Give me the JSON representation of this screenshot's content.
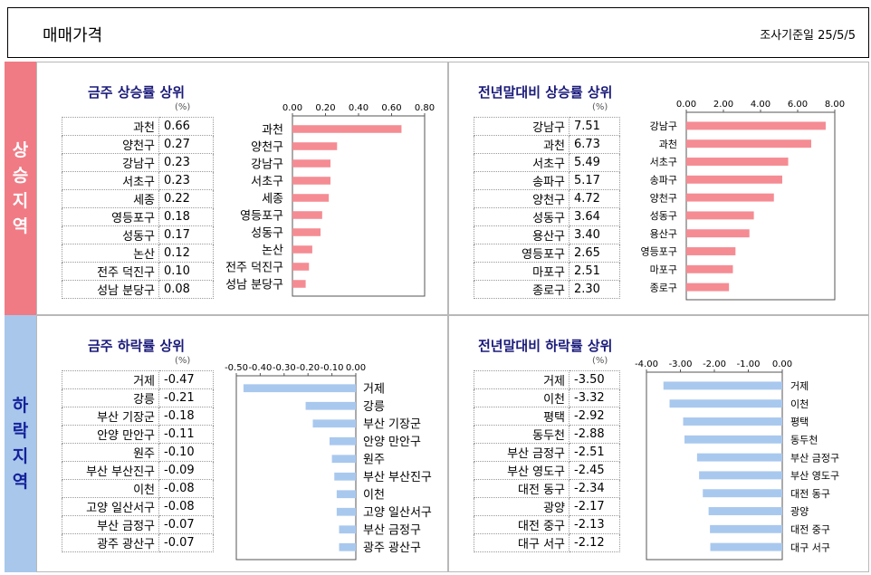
{
  "header": {
    "title": "매매가격",
    "date_label": "조사기준일 25/5/5"
  },
  "sections": {
    "rise_label": "상승지역",
    "fall_label": "하락지역"
  },
  "colors": {
    "rise_bar": "#f58c93",
    "fall_bar": "#a9c8ee",
    "rise_side": "#f07b85",
    "fall_side": "#a8c7eb"
  },
  "unit_label": "(%)",
  "chart_data": [
    {
      "type": "bar",
      "title": "금주 상승률 상위",
      "categories": [
        "과천",
        "양천구",
        "강남구",
        "서초구",
        "세종",
        "영등포구",
        "성동구",
        "논산",
        "전주 덕진구",
        "성남 분당구"
      ],
      "values": [
        0.66,
        0.27,
        0.23,
        0.23,
        0.22,
        0.18,
        0.17,
        0.12,
        0.1,
        0.08
      ],
      "table_values": [
        "0.66",
        "0.27",
        "0.23",
        "0.23",
        "0.22",
        "0.18",
        "0.17",
        "0.12",
        "0.10",
        "0.08"
      ],
      "xlim": [
        0,
        0.8
      ],
      "ticks": [
        0,
        0.2,
        0.4,
        0.6,
        0.8
      ],
      "tick_labels": [
        "0.00",
        "0.20",
        "0.40",
        "0.60",
        "0.80"
      ]
    },
    {
      "type": "bar",
      "title": "전년말대비 상승률 상위",
      "categories": [
        "강남구",
        "과천",
        "서초구",
        "송파구",
        "양천구",
        "성동구",
        "용산구",
        "영등포구",
        "마포구",
        "종로구"
      ],
      "values": [
        7.51,
        6.73,
        5.49,
        5.17,
        4.72,
        3.64,
        3.4,
        2.65,
        2.51,
        2.3
      ],
      "table_values": [
        "7.51",
        "6.73",
        "5.49",
        "5.17",
        "4.72",
        "3.64",
        "3.40",
        "2.65",
        "2.51",
        "2.30"
      ],
      "xlim": [
        0,
        8
      ],
      "ticks": [
        0,
        2,
        4,
        6,
        8
      ],
      "tick_labels": [
        "0.00",
        "2.00",
        "4.00",
        "6.00",
        "8.00"
      ]
    },
    {
      "type": "bar",
      "title": "금주 하락률 상위",
      "categories": [
        "거제",
        "강릉",
        "부산 기장군",
        "안양 만안구",
        "원주",
        "부산 부산진구",
        "이천",
        "고양 일산서구",
        "부산 금정구",
        "광주 광산구"
      ],
      "values": [
        -0.47,
        -0.21,
        -0.18,
        -0.11,
        -0.1,
        -0.09,
        -0.08,
        -0.08,
        -0.07,
        -0.07
      ],
      "table_values": [
        "-0.47",
        "-0.21",
        "-0.18",
        "-0.11",
        "-0.10",
        "-0.09",
        "-0.08",
        "-0.08",
        "-0.07",
        "-0.07"
      ],
      "xlim": [
        -0.5,
        0
      ],
      "ticks": [
        -0.5,
        -0.4,
        -0.3,
        -0.2,
        -0.1,
        0
      ],
      "tick_labels": [
        "-0.50",
        "-0.40",
        "-0.30",
        "-0.20",
        "-0.10",
        "0.00"
      ]
    },
    {
      "type": "bar",
      "title": "전년말대비 하락률 상위",
      "categories": [
        "거제",
        "이천",
        "평택",
        "동두천",
        "부산 금정구",
        "부산 영도구",
        "대전 동구",
        "광양",
        "대전 중구",
        "대구 서구"
      ],
      "values": [
        -3.5,
        -3.32,
        -2.92,
        -2.88,
        -2.51,
        -2.45,
        -2.34,
        -2.17,
        -2.13,
        -2.12
      ],
      "table_values": [
        "-3.50",
        "-3.32",
        "-2.92",
        "-2.88",
        "-2.51",
        "-2.45",
        "-2.34",
        "-2.17",
        "-2.13",
        "-2.12"
      ],
      "xlim": [
        -4,
        0
      ],
      "ticks": [
        -4,
        -3,
        -2,
        -1,
        0
      ],
      "tick_labels": [
        "-4.00",
        "-3.00",
        "-2.00",
        "-1.00",
        "0.00"
      ]
    }
  ]
}
